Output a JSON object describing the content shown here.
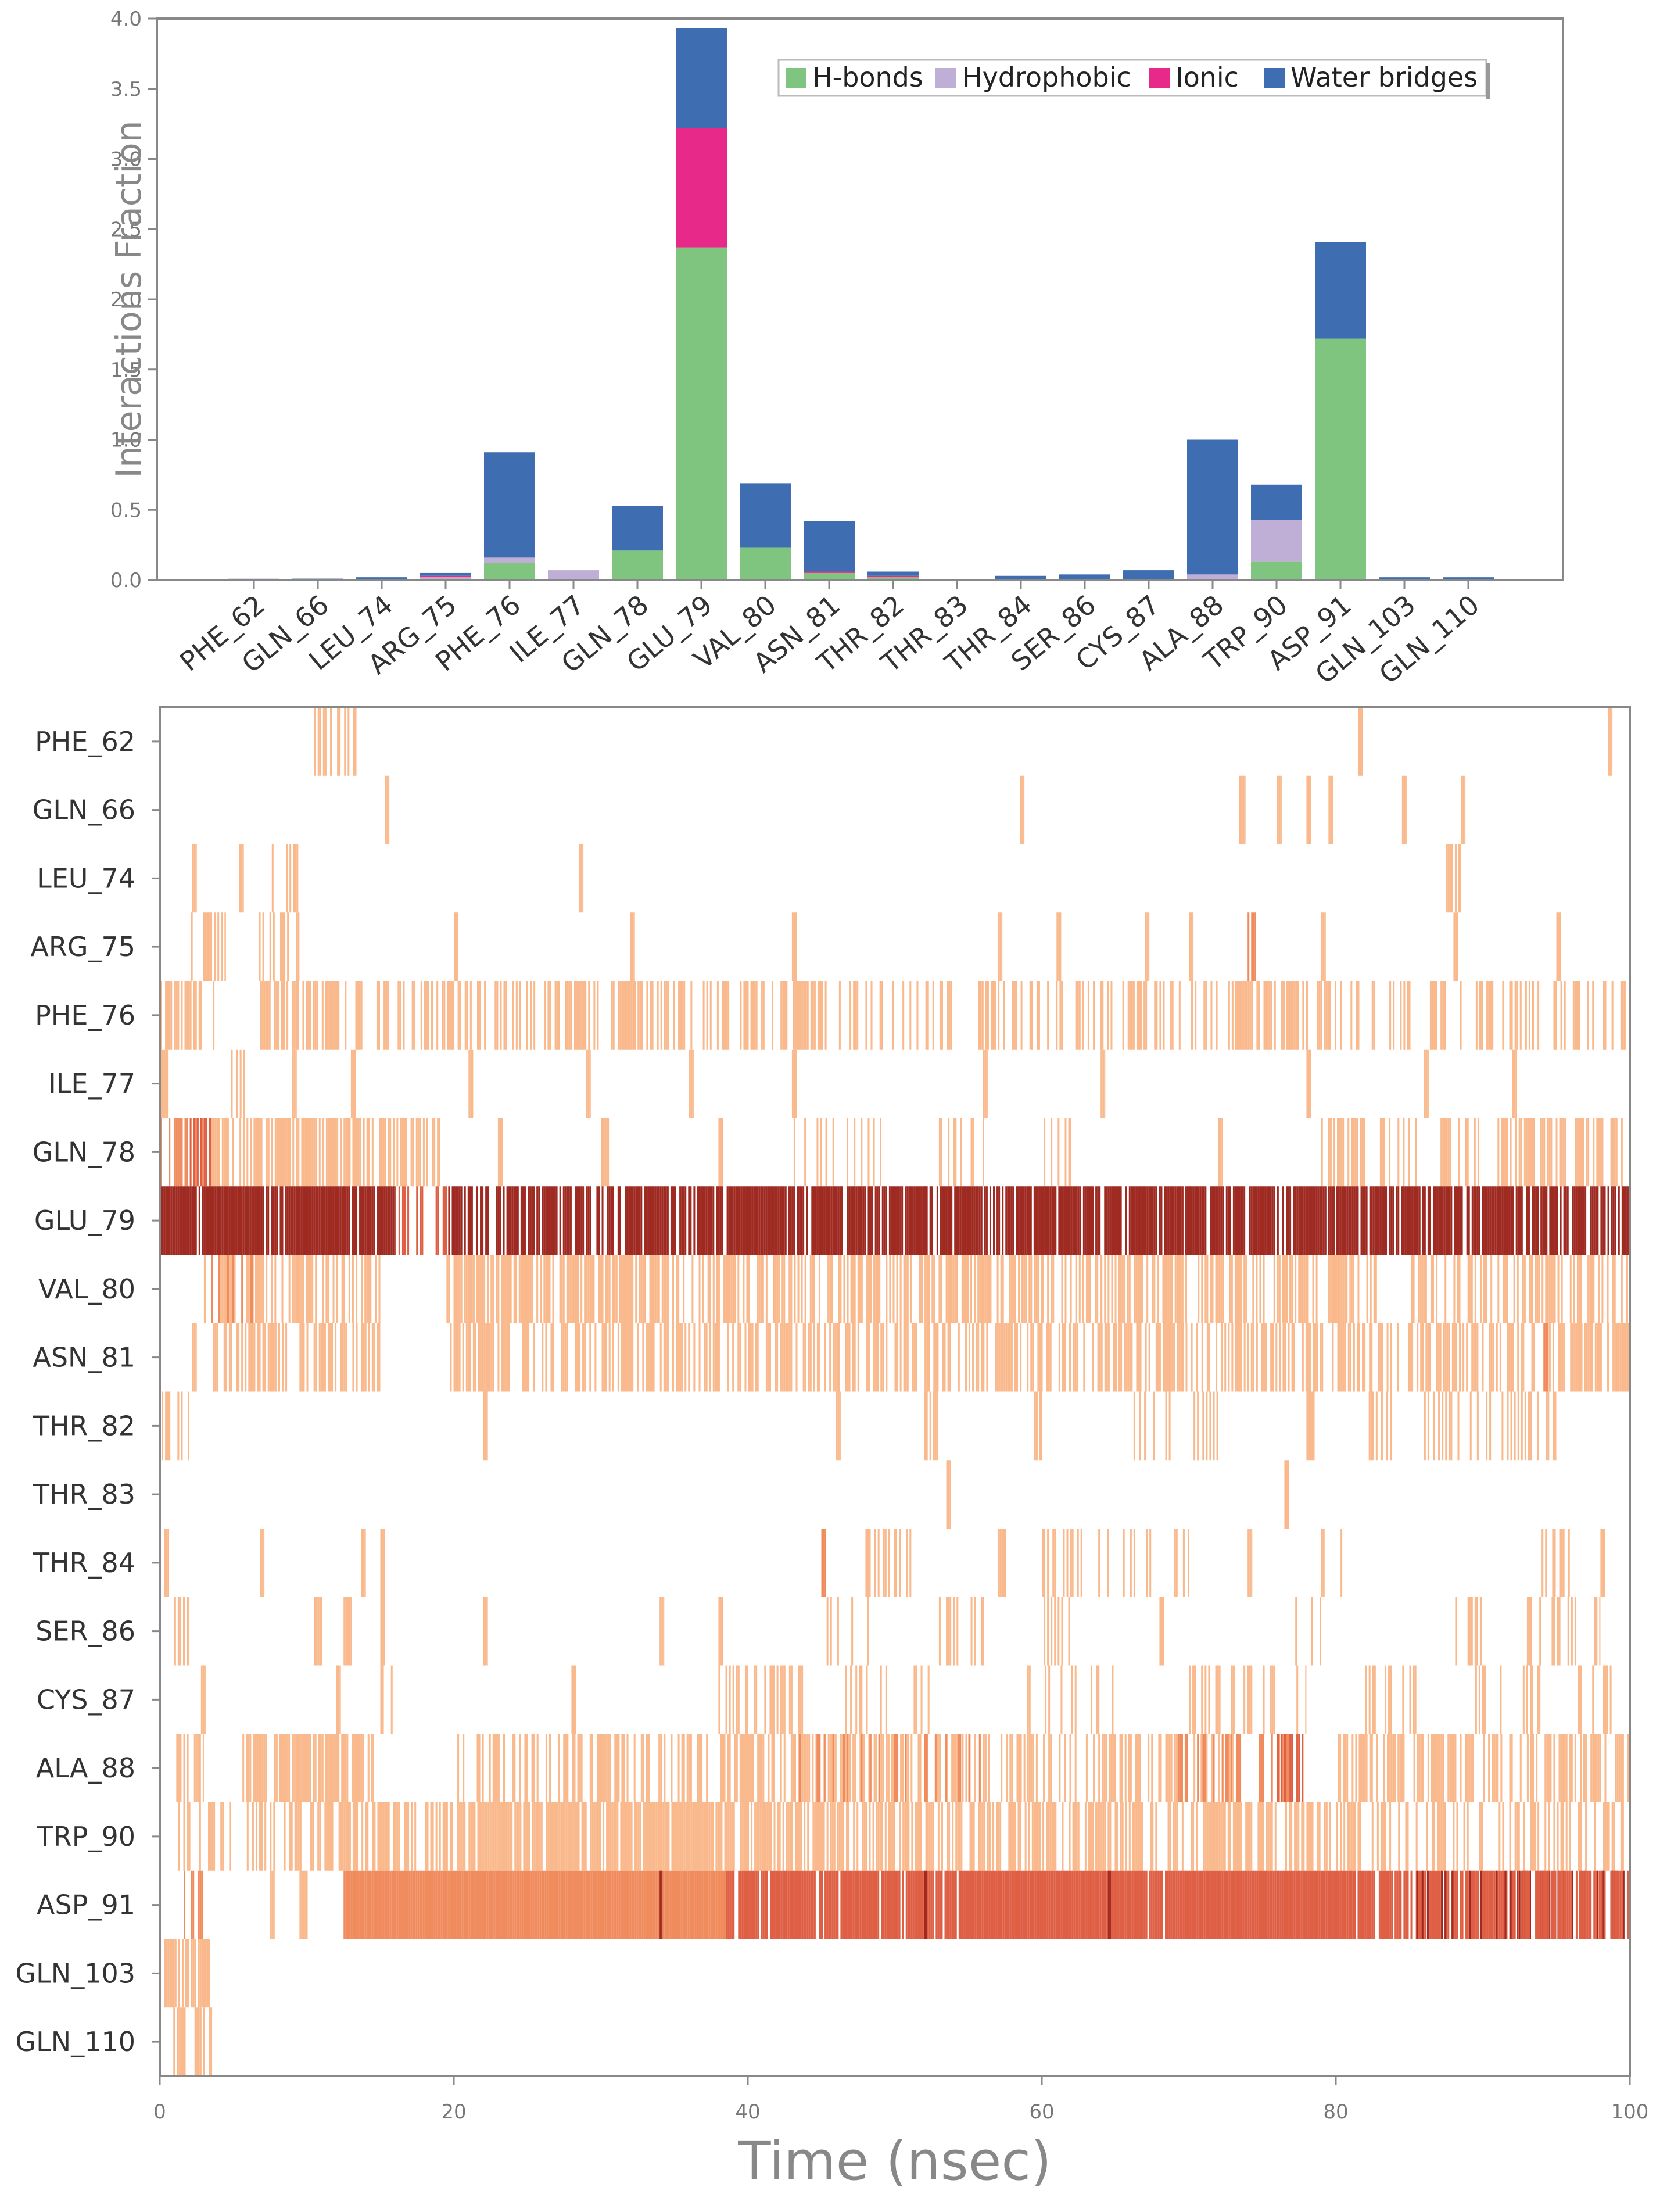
{
  "chart_data": [
    {
      "type": "bar",
      "stacked": true,
      "ylabel": "Interactions Fraction",
      "ylim": [
        0,
        4.0
      ],
      "yticks": [
        "0.0",
        "0.5",
        "1.0",
        "1.5",
        "2.0",
        "2.5",
        "3.0",
        "3.5",
        "4.0"
      ],
      "grid": false,
      "legend_position": "top-right",
      "categories": [
        "PHE_62",
        "GLN_66",
        "LEU_74",
        "ARG_75",
        "PHE_76",
        "ILE_77",
        "GLN_78",
        "GLU_79",
        "VAL_80",
        "ASN_81",
        "THR_82",
        "THR_83",
        "THR_84",
        "SER_86",
        "CYS_87",
        "ALA_88",
        "TRP_90",
        "ASP_91",
        "GLN_103",
        "GLN_110"
      ],
      "series": [
        {
          "name": "H-bonds",
          "color": "#7fc47f",
          "values": [
            0.0,
            0.0,
            0.0,
            0.01,
            0.12,
            0.0,
            0.21,
            2.37,
            0.23,
            0.05,
            0.02,
            0.0,
            0.0,
            0.0,
            0.0,
            0.0,
            0.13,
            1.72,
            0.0,
            0.0
          ]
        },
        {
          "name": "Hydrophobic",
          "color": "#bfaed6",
          "values": [
            0.01,
            0.0,
            0.0,
            0.01,
            0.04,
            0.07,
            0.0,
            0.0,
            0.0,
            0.0,
            0.0,
            0.0,
            0.0,
            0.0,
            0.0,
            0.04,
            0.3,
            0.0,
            0.0,
            0.0
          ]
        },
        {
          "name": "Ionic",
          "color": "#e7298a",
          "values": [
            0.0,
            0.0,
            0.0,
            0.01,
            0.0,
            0.0,
            0.0,
            0.85,
            0.0,
            0.01,
            0.01,
            0.0,
            0.0,
            0.0,
            0.0,
            0.0,
            0.0,
            0.0,
            0.0,
            0.0
          ]
        },
        {
          "name": "Water bridges",
          "color": "#3f6db2",
          "values": [
            0.0,
            0.01,
            0.02,
            0.02,
            0.75,
            0.0,
            0.32,
            0.71,
            0.46,
            0.36,
            0.03,
            0.0,
            0.03,
            0.04,
            0.07,
            0.96,
            0.25,
            0.69,
            0.02,
            0.02
          ]
        }
      ]
    },
    {
      "type": "heatmap",
      "xlabel": "Time (nsec)",
      "xlim": [
        0,
        100
      ],
      "xticks": [
        "0",
        "20",
        "40",
        "60",
        "80",
        "100"
      ],
      "rows": [
        "PHE_62",
        "GLN_66",
        "LEU_74",
        "ARG_75",
        "PHE_76",
        "ILE_77",
        "GLN_78",
        "GLU_79",
        "VAL_80",
        "ASN_81",
        "THR_82",
        "THR_83",
        "THR_84",
        "SER_86",
        "CYS_87",
        "ALA_88",
        "TRP_90",
        "ASP_91",
        "GLN_103",
        "GLN_110"
      ],
      "colors": [
        "#f9b98c",
        "#f08b5d",
        "#de5f44",
        "#9e2a22"
      ],
      "segments": [
        [
          [
            10.5,
            13.5,
            0,
            0.55
          ],
          [
            81.5,
            81.8,
            0,
            1
          ],
          [
            98.5,
            98.8,
            0,
            1
          ]
        ],
        [
          [
            15.3,
            15.6,
            0,
            1
          ],
          [
            58.5,
            58.8,
            0,
            1
          ],
          [
            73.3,
            73.8,
            0,
            0.9
          ],
          [
            76,
            76.3,
            0,
            1
          ],
          [
            78,
            78.3,
            0,
            1
          ],
          [
            79.5,
            79.8,
            0,
            1
          ],
          [
            84.5,
            84.8,
            0,
            1
          ],
          [
            88.5,
            88.8,
            0,
            1
          ]
        ],
        [
          [
            2.2,
            2.5,
            0,
            1
          ],
          [
            5.4,
            5.7,
            0,
            1
          ],
          [
            7.5,
            9.5,
            0,
            0.5
          ],
          [
            28.5,
            28.8,
            0,
            1
          ],
          [
            87.5,
            88.5,
            0,
            0.5
          ]
        ],
        [
          [
            2,
            4.5,
            0,
            0.55
          ],
          [
            6.5,
            9.5,
            0,
            0.35
          ],
          [
            20,
            20.3,
            0,
            1
          ],
          [
            32,
            32.3,
            0,
            1
          ],
          [
            43,
            43.3,
            0,
            1
          ],
          [
            57,
            57.3,
            0,
            1
          ],
          [
            61,
            61.3,
            0,
            1
          ],
          [
            67,
            67.3,
            0,
            1
          ],
          [
            70,
            70.3,
            0,
            1
          ],
          [
            74,
            74.5,
            1,
            0.55
          ],
          [
            79,
            79.3,
            0,
            1
          ],
          [
            88,
            88.3,
            0,
            1
          ],
          [
            95,
            95.3,
            0,
            1
          ]
        ],
        [
          [
            0,
            4,
            0,
            0.6
          ],
          [
            6.7,
            45,
            0,
            0.55
          ],
          [
            45,
            65,
            0,
            0.35
          ],
          [
            65,
            78,
            0,
            0.45
          ],
          [
            78,
            100,
            0,
            0.35
          ]
        ],
        [
          [
            0,
            0.5,
            0,
            1
          ],
          [
            4,
            6,
            0,
            0.3
          ],
          [
            9,
            9.3,
            0,
            1
          ],
          [
            13,
            13.3,
            0,
            1
          ],
          [
            21,
            21.3,
            0,
            1
          ],
          [
            29,
            29.3,
            0,
            1
          ],
          [
            36,
            36.3,
            0,
            1
          ],
          [
            43,
            43.3,
            0,
            1
          ],
          [
            56,
            56.3,
            0,
            1
          ],
          [
            64,
            64.3,
            0,
            1
          ],
          [
            78,
            78.3,
            0,
            1
          ],
          [
            86,
            86.3,
            0,
            1
          ],
          [
            92,
            92.3,
            0,
            1
          ]
        ],
        [
          [
            0,
            3.5,
            1,
            0.6
          ],
          [
            1.8,
            3.5,
            2,
            0.5
          ],
          [
            3.5,
            19,
            0,
            0.7
          ],
          [
            23,
            23.3,
            0,
            1
          ],
          [
            30,
            30.5,
            0,
            1
          ],
          [
            38,
            38.3,
            0,
            1
          ],
          [
            43,
            49,
            0,
            0.3
          ],
          [
            53,
            56,
            0,
            0.3
          ],
          [
            60,
            62,
            0,
            0.3
          ],
          [
            72,
            72.3,
            0,
            1
          ],
          [
            79,
            82,
            0,
            0.55
          ],
          [
            83,
            86,
            0,
            0.4
          ],
          [
            87,
            90,
            0,
            0.45
          ],
          [
            91,
            100,
            0,
            0.5
          ]
        ],
        [
          [
            0,
            16,
            3,
            0.95
          ],
          [
            16,
            19.5,
            2,
            0.45
          ],
          [
            19.5,
            37,
            3,
            0.8
          ],
          [
            37,
            52,
            3,
            0.85
          ],
          [
            52,
            80,
            3,
            0.85
          ],
          [
            80,
            100,
            3,
            0.75
          ]
        ],
        [
          [
            3,
            15,
            0,
            0.65
          ],
          [
            3.5,
            6.5,
            1,
            0.3
          ],
          [
            19.5,
            60,
            0,
            0.6
          ],
          [
            60,
            64,
            0,
            0.35
          ],
          [
            64,
            81,
            0,
            0.6
          ],
          [
            81,
            85,
            0,
            0.2
          ],
          [
            85,
            100,
            0,
            0.45
          ]
        ],
        [
          [
            2.2,
            2.5,
            0,
            1
          ],
          [
            3.5,
            15,
            0,
            0.55
          ],
          [
            19.5,
            100,
            0,
            0.55
          ],
          [
            94,
            94.5,
            1,
            0.5
          ]
        ],
        [
          [
            0,
            2,
            0,
            0.6
          ],
          [
            22,
            22.3,
            0,
            1
          ],
          [
            46,
            46.3,
            0,
            1
          ],
          [
            52,
            53,
            0,
            0.6
          ],
          [
            59,
            60,
            0,
            0.5
          ],
          [
            66,
            72,
            0,
            0.35
          ],
          [
            78,
            78.5,
            0,
            1
          ],
          [
            82,
            84,
            0,
            0.4
          ],
          [
            86,
            95,
            0,
            0.3
          ]
        ],
        [
          [
            53.5,
            53.8,
            0,
            1
          ],
          [
            76.5,
            76.8,
            0,
            1
          ]
        ],
        [
          [
            0.3,
            0.6,
            0,
            1
          ],
          [
            6.8,
            7.1,
            0,
            1
          ],
          [
            13.7,
            14,
            0,
            1
          ],
          [
            15,
            15.3,
            0,
            1
          ],
          [
            45,
            45.3,
            1,
            1
          ],
          [
            48,
            52,
            0,
            0.4
          ],
          [
            57,
            57.5,
            0,
            1
          ],
          [
            60,
            70,
            0,
            0.3
          ],
          [
            74,
            74.3,
            0,
            1
          ],
          [
            79,
            81,
            0,
            0.3
          ],
          [
            94,
            96,
            0,
            0.4
          ],
          [
            98,
            98.3,
            0,
            1
          ]
        ],
        [
          [
            0.5,
            2,
            0,
            0.5
          ],
          [
            10.5,
            11,
            0,
            1
          ],
          [
            12.5,
            13,
            0,
            1
          ],
          [
            15,
            15.3,
            0,
            1
          ],
          [
            22,
            22.3,
            0,
            1
          ],
          [
            34,
            34.3,
            0,
            1
          ],
          [
            38,
            38.3,
            0,
            1
          ],
          [
            45,
            49,
            0,
            0.3
          ],
          [
            53,
            56,
            0,
            0.3
          ],
          [
            60,
            62,
            0,
            0.4
          ],
          [
            68,
            68.3,
            0,
            1
          ],
          [
            77,
            79,
            0,
            0.3
          ],
          [
            88,
            90,
            0,
            0.3
          ],
          [
            93,
            98,
            0,
            0.4
          ]
        ],
        [
          [
            2.8,
            3.1,
            0,
            1
          ],
          [
            12,
            12.3,
            0,
            1
          ],
          [
            15,
            16,
            0,
            0.4
          ],
          [
            28,
            28.3,
            0,
            1
          ],
          [
            38,
            44,
            0,
            0.4
          ],
          [
            46,
            53,
            0,
            0.2
          ],
          [
            59,
            65,
            0,
            0.3
          ],
          [
            70,
            78,
            0,
            0.3
          ],
          [
            82,
            86,
            0,
            0.3
          ],
          [
            89,
            94,
            0,
            0.3
          ],
          [
            96,
            99,
            0,
            0.3
          ]
        ],
        [
          [
            1,
            3,
            0,
            0.5
          ],
          [
            5.5,
            14.5,
            0,
            0.65
          ],
          [
            20,
            38,
            0,
            0.45
          ],
          [
            38,
            63,
            0,
            0.55
          ],
          [
            43,
            56,
            1,
            0.25
          ],
          [
            63,
            73,
            0,
            0.5
          ],
          [
            69,
            78,
            1,
            0.3
          ],
          [
            76,
            78,
            2,
            0.4
          ],
          [
            80,
            87,
            0,
            0.55
          ],
          [
            87,
            100,
            0,
            0.5
          ]
        ],
        [
          [
            1,
            10,
            0,
            0.4
          ],
          [
            10,
            21,
            0,
            0.6
          ],
          [
            21,
            39,
            0,
            0.9
          ],
          [
            39,
            58,
            0,
            0.65
          ],
          [
            58,
            75,
            0,
            0.55
          ],
          [
            75,
            100,
            0,
            0.45
          ]
        ],
        [
          [
            1.5,
            3.5,
            1,
            0.5
          ],
          [
            7.5,
            7.8,
            0,
            1
          ],
          [
            9.5,
            10,
            0,
            1
          ],
          [
            12.5,
            38.5,
            1,
            1
          ],
          [
            34,
            34.2,
            3,
            1
          ],
          [
            38.5,
            81,
            2,
            0.95
          ],
          [
            52,
            52.2,
            3,
            1
          ],
          [
            64.5,
            64.7,
            3,
            1
          ],
          [
            81,
            92,
            2,
            0.85
          ],
          [
            85,
            100,
            3,
            0.3
          ],
          [
            92,
            100,
            2,
            0.7
          ]
        ],
        [
          [
            0.3,
            3.5,
            0,
            0.7
          ]
        ],
        [
          [
            0.8,
            3.8,
            0,
            0.65
          ]
        ]
      ]
    }
  ]
}
